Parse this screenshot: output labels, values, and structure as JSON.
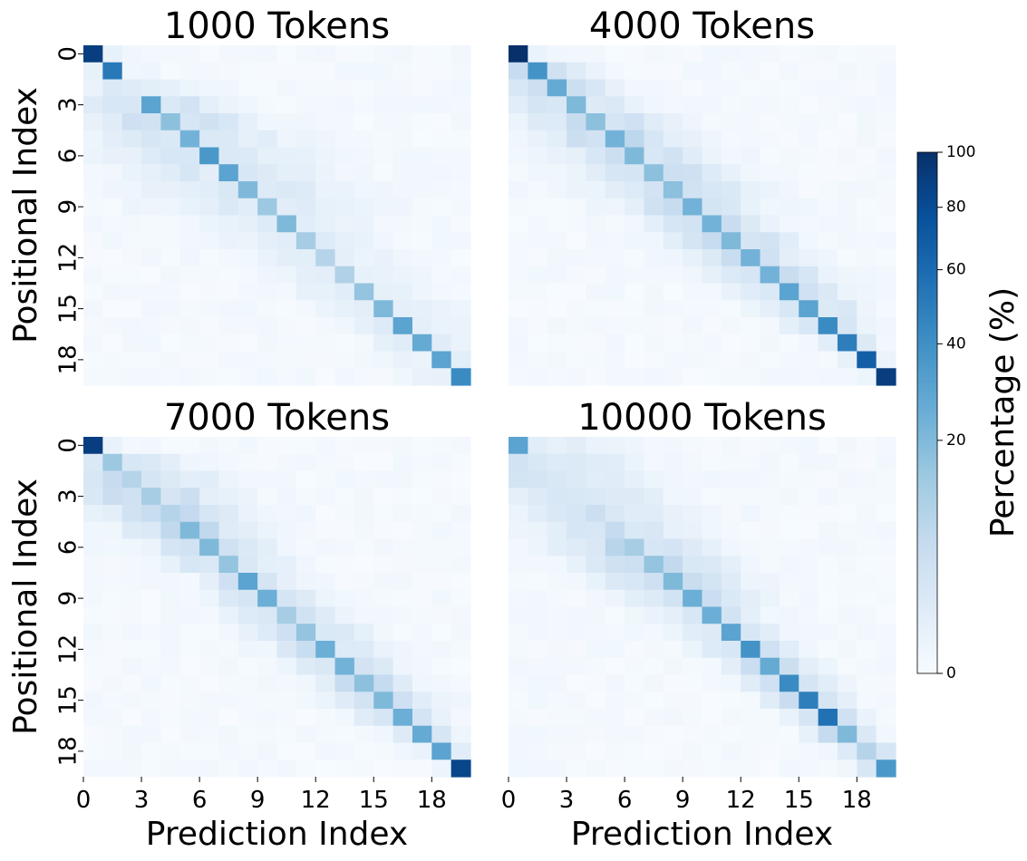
{
  "figure": {
    "panel_titles": [
      "1000 Tokens",
      "4000 Tokens",
      "7000 Tokens",
      "10000 Tokens"
    ],
    "ylabel": "Positional Index",
    "xlabel": "Prediction Index",
    "colorbar": {
      "label": "Percentage (%)",
      "ticks": [
        "0",
        "20",
        "40",
        "60",
        "80",
        "100"
      ]
    }
  },
  "chart_data": [
    {
      "type": "heatmap",
      "title": "1000 Tokens",
      "xlabel": "",
      "ylabel": "Positional Index",
      "size": 20,
      "x_ticks": [
        "0",
        "3",
        "6",
        "9",
        "12",
        "15",
        "18"
      ],
      "y_ticks": [
        "0",
        "3",
        "6",
        "9",
        "12",
        "15",
        "18"
      ],
      "value_range": [
        0,
        100
      ],
      "colorscale": "Blues",
      "diagonal": [
        95,
        72,
        12,
        55,
        42,
        48,
        60,
        55,
        45,
        38,
        45,
        35,
        30,
        32,
        40,
        45,
        55,
        52,
        55,
        65
      ],
      "spread": [
        1.2,
        1.3,
        2.2,
        2.6,
        3.2,
        3.4,
        3.6,
        3.5,
        3.6,
        3.5,
        3.0,
        2.6,
        2.4,
        2.2,
        2.2,
        2.2,
        2.0,
        1.8,
        1.8,
        1.5
      ],
      "off_max": [
        10,
        8,
        15,
        22,
        22,
        20,
        16,
        16,
        15,
        14,
        12,
        12,
        12,
        12,
        12,
        12,
        12,
        14,
        12,
        12
      ]
    },
    {
      "type": "heatmap",
      "title": "4000 Tokens",
      "xlabel": "",
      "ylabel": "",
      "size": 20,
      "x_ticks": [
        "0",
        "3",
        "6",
        "9",
        "12",
        "15",
        "18"
      ],
      "y_ticks": [
        "0",
        "3",
        "6",
        "9",
        "12",
        "15",
        "18"
      ],
      "value_range": [
        0,
        100
      ],
      "colorscale": "Blues",
      "diagonal": [
        100,
        62,
        52,
        45,
        42,
        48,
        45,
        42,
        42,
        48,
        48,
        45,
        48,
        48,
        55,
        55,
        65,
        70,
        82,
        95
      ],
      "spread": [
        1.0,
        1.4,
        1.8,
        2.2,
        2.4,
        2.4,
        2.4,
        2.4,
        2.4,
        2.2,
        2.0,
        2.0,
        1.9,
        1.8,
        1.7,
        1.6,
        1.4,
        1.2,
        1.0,
        0.8
      ],
      "off_max": [
        8,
        35,
        28,
        22,
        25,
        28,
        28,
        28,
        28,
        28,
        28,
        28,
        28,
        28,
        25,
        25,
        20,
        18,
        10,
        8
      ]
    },
    {
      "type": "heatmap",
      "title": "7000 Tokens",
      "xlabel": "Prediction Index",
      "ylabel": "Positional Index",
      "size": 20,
      "x_ticks": [
        "0",
        "3",
        "6",
        "9",
        "12",
        "15",
        "18"
      ],
      "y_ticks": [
        "0",
        "3",
        "6",
        "9",
        "12",
        "15",
        "18"
      ],
      "value_range": [
        0,
        100
      ],
      "colorscale": "Blues",
      "diagonal": [
        95,
        38,
        30,
        35,
        30,
        45,
        45,
        40,
        55,
        50,
        35,
        40,
        50,
        48,
        42,
        45,
        50,
        52,
        55,
        92
      ],
      "spread": [
        1.0,
        2.2,
        2.6,
        2.6,
        2.4,
        2.2,
        2.0,
        1.8,
        1.6,
        1.6,
        1.8,
        1.8,
        1.8,
        1.7,
        1.6,
        1.6,
        1.4,
        1.2,
        1.0,
        0.8
      ],
      "off_max": [
        10,
        25,
        25,
        28,
        30,
        30,
        28,
        25,
        25,
        25,
        25,
        25,
        25,
        25,
        28,
        25,
        25,
        20,
        15,
        8
      ]
    },
    {
      "type": "heatmap",
      "title": "10000 Tokens",
      "xlabel": "Prediction Index",
      "ylabel": "",
      "size": 20,
      "x_ticks": [
        "0",
        "3",
        "6",
        "9",
        "12",
        "15",
        "18"
      ],
      "y_ticks": [
        "0",
        "3",
        "6",
        "9",
        "12",
        "15",
        "18"
      ],
      "value_range": [
        0,
        100
      ],
      "colorscale": "Blues",
      "diagonal": [
        55,
        15,
        15,
        15,
        22,
        25,
        35,
        40,
        45,
        50,
        50,
        55,
        62,
        52,
        65,
        70,
        75,
        45,
        30,
        60
      ],
      "spread": [
        3.5,
        3.5,
        3.5,
        3.0,
        3.0,
        2.8,
        2.6,
        2.4,
        2.2,
        2.0,
        1.6,
        1.6,
        1.5,
        1.4,
        1.3,
        1.2,
        1.0,
        1.0,
        1.0,
        0.8
      ],
      "off_max": [
        15,
        18,
        18,
        18,
        18,
        20,
        30,
        30,
        30,
        30,
        25,
        22,
        30,
        35,
        35,
        35,
        35,
        40,
        25,
        45
      ]
    }
  ]
}
